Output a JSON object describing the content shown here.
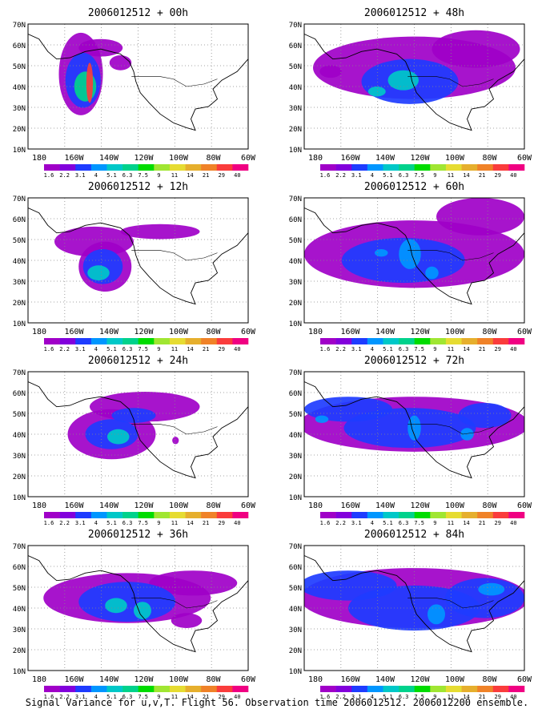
{
  "figure": {
    "caption": "Signal Variance for u,v,T. Flight 56. Observation time 2006012512. 2006012200 ensemble."
  },
  "axes": {
    "lat_labels": [
      "10N",
      "20N",
      "30N",
      "40N",
      "50N",
      "60N",
      "70N"
    ],
    "lon_labels": [
      "180",
      "160W",
      "140W",
      "120W",
      "100W",
      "80W",
      "60W"
    ],
    "grid": true
  },
  "colorbar": {
    "labels": [
      "1.6",
      "2.2",
      "3.1",
      "4",
      "5.1",
      "6.3",
      "7.5",
      "9",
      "11",
      "14",
      "21",
      "29",
      "40"
    ],
    "colors": [
      "#a000c8",
      "#8200dc",
      "#1e3cff",
      "#0096ff",
      "#00c8c8",
      "#00d28c",
      "#00dc00",
      "#a0e632",
      "#e6dc32",
      "#e6af2d",
      "#f08228",
      "#fa3c3c",
      "#f00082"
    ]
  },
  "panels": [
    {
      "title": "2006012512 + 00h"
    },
    {
      "title": "2006012512 + 48h"
    },
    {
      "title": "2006012512 + 12h"
    },
    {
      "title": "2006012512 + 60h"
    },
    {
      "title": "2006012512 + 24h"
    },
    {
      "title": "2006012512 + 72h"
    },
    {
      "title": "2006012512 + 36h"
    },
    {
      "title": "2006012512 + 84h"
    }
  ]
}
